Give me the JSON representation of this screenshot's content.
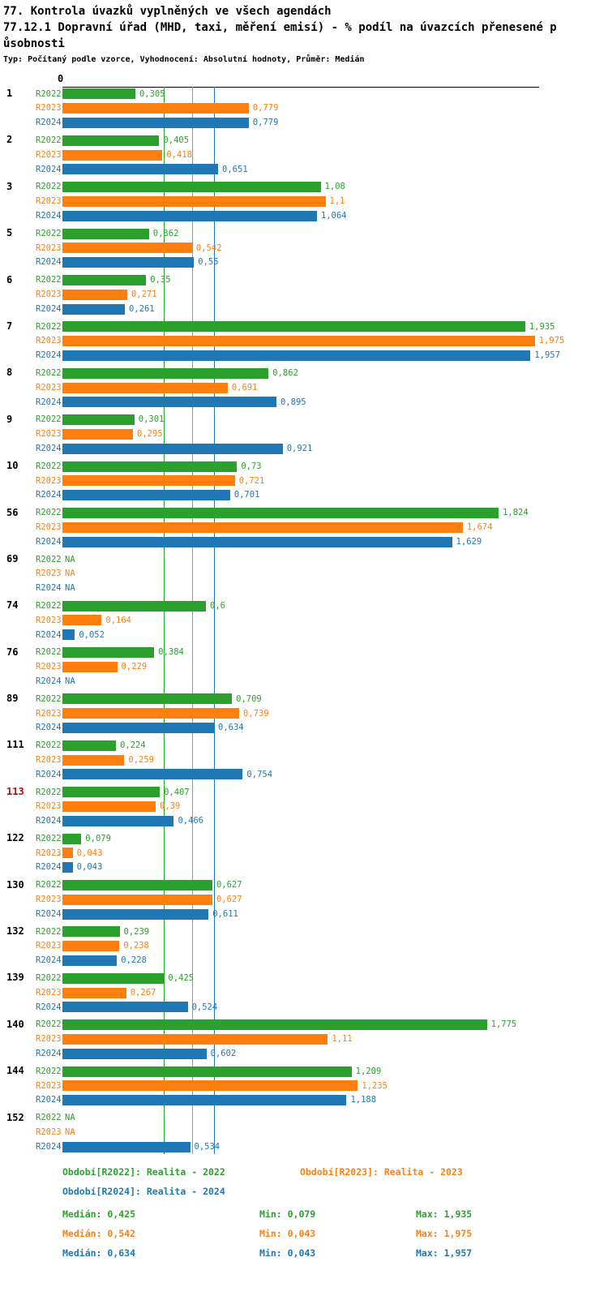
{
  "chart_data": {
    "type": "bar",
    "orientation": "horizontal",
    "title": "77. Kontrola úvazků vyplněných ve všech agendách",
    "subtitle_line1": "77.12.1 Dopravní úřad (MHD, taxi, měření emisí) - % podíl na úvazcích přenesené p",
    "subtitle_line2": "ůsobnosti",
    "meta": "Typ: Počítaný podle vzorce, Vyhodnocení: Absolutní hodnoty, Průměr: Medián",
    "x_axis": {
      "zero_label": "0",
      "range": [
        0,
        2
      ]
    },
    "series": [
      "R2022",
      "R2023",
      "R2024"
    ],
    "series_colors": {
      "R2022": "#2ca02c",
      "R2023": "#ff7f0e",
      "R2024": "#1f77b4"
    },
    "medians": {
      "R2022": 0.425,
      "R2023": 0.542,
      "R2024": 0.634
    },
    "highlight_color": "#d40000",
    "groups": [
      {
        "id": "1",
        "highlight": false,
        "values": [
          0.305,
          0.779,
          0.779
        ],
        "labels": [
          "0,305",
          "0,779",
          "0,779"
        ]
      },
      {
        "id": "2",
        "highlight": false,
        "values": [
          0.405,
          0.418,
          0.651
        ],
        "labels": [
          "0,405",
          "0,418",
          "0,651"
        ]
      },
      {
        "id": "3",
        "highlight": false,
        "values": [
          1.08,
          1.1,
          1.064
        ],
        "labels": [
          "1,08",
          "1,1",
          "1,064"
        ]
      },
      {
        "id": "5",
        "highlight": false,
        "values": [
          0.362,
          0.542,
          0.55
        ],
        "labels": [
          "0,362",
          "0,542",
          "0,55"
        ]
      },
      {
        "id": "6",
        "highlight": false,
        "values": [
          0.35,
          0.271,
          0.261
        ],
        "labels": [
          "0,35",
          "0,271",
          "0,261"
        ]
      },
      {
        "id": "7",
        "highlight": false,
        "values": [
          1.935,
          1.975,
          1.957
        ],
        "labels": [
          "1,935",
          "1,975",
          "1,957"
        ]
      },
      {
        "id": "8",
        "highlight": false,
        "values": [
          0.862,
          0.691,
          0.895
        ],
        "labels": [
          "0,862",
          "0,691",
          "0,895"
        ]
      },
      {
        "id": "9",
        "highlight": false,
        "values": [
          0.301,
          0.295,
          0.921
        ],
        "labels": [
          "0,301",
          "0,295",
          "0,921"
        ]
      },
      {
        "id": "10",
        "highlight": false,
        "values": [
          0.73,
          0.721,
          0.701
        ],
        "labels": [
          "0,73",
          "0,721",
          "0,701"
        ]
      },
      {
        "id": "56",
        "highlight": false,
        "values": [
          1.824,
          1.674,
          1.629
        ],
        "labels": [
          "1,824",
          "1,674",
          "1,629"
        ]
      },
      {
        "id": "69",
        "highlight": false,
        "values": [
          null,
          null,
          null
        ],
        "labels": [
          "NA",
          "NA",
          "NA"
        ]
      },
      {
        "id": "74",
        "highlight": false,
        "values": [
          0.6,
          0.164,
          0.052
        ],
        "labels": [
          "0,6",
          "0,164",
          "0,052"
        ]
      },
      {
        "id": "76",
        "highlight": false,
        "values": [
          0.384,
          0.229,
          null
        ],
        "labels": [
          "0,384",
          "0,229",
          "NA"
        ]
      },
      {
        "id": "89",
        "highlight": false,
        "values": [
          0.709,
          0.739,
          0.634
        ],
        "labels": [
          "0,709",
          "0,739",
          "0,634"
        ]
      },
      {
        "id": "111",
        "highlight": false,
        "values": [
          0.224,
          0.259,
          0.754
        ],
        "labels": [
          "0,224",
          "0,259",
          "0,754"
        ]
      },
      {
        "id": "113",
        "highlight": true,
        "values": [
          0.407,
          0.39,
          0.466
        ],
        "labels": [
          "0,407",
          "0,39",
          "0,466"
        ]
      },
      {
        "id": "122",
        "highlight": false,
        "values": [
          0.079,
          0.043,
          0.043
        ],
        "labels": [
          "0,079",
          "0,043",
          "0,043"
        ]
      },
      {
        "id": "130",
        "highlight": false,
        "values": [
          0.627,
          0.627,
          0.611
        ],
        "labels": [
          "0,627",
          "0,627",
          "0,611"
        ]
      },
      {
        "id": "132",
        "highlight": false,
        "values": [
          0.239,
          0.238,
          0.228
        ],
        "labels": [
          "0,239",
          "0,238",
          "0,228"
        ]
      },
      {
        "id": "139",
        "highlight": false,
        "values": [
          0.425,
          0.267,
          0.524
        ],
        "labels": [
          "0,425",
          "0,267",
          "0,524"
        ]
      },
      {
        "id": "140",
        "highlight": false,
        "values": [
          1.775,
          1.11,
          0.602
        ],
        "labels": [
          "1,775",
          "1,11",
          "0,602"
        ]
      },
      {
        "id": "144",
        "highlight": false,
        "values": [
          1.209,
          1.235,
          1.188
        ],
        "labels": [
          "1,209",
          "1,235",
          "1,188"
        ]
      },
      {
        "id": "152",
        "highlight": false,
        "values": [
          null,
          null,
          0.534
        ],
        "labels": [
          "NA",
          "NA",
          "0,534"
        ]
      }
    ],
    "legend": {
      "items": [
        {
          "series": "R2022",
          "label": "Období[R2022]: Realita - 2022"
        },
        {
          "series": "R2023",
          "label": "Období[R2023]: Realita - 2023"
        },
        {
          "series": "R2024",
          "label": "Období[R2024]: Realita - 2024"
        }
      ]
    },
    "stats": [
      {
        "series": "R2022",
        "median": "Medián: 0,425",
        "min": "Min: 0,079",
        "max": "Max: 1,935"
      },
      {
        "series": "R2023",
        "median": "Medián: 0,542",
        "min": "Min: 0,043",
        "max": "Max: 1,975"
      },
      {
        "series": "R2024",
        "median": "Medián: 0,634",
        "min": "Min: 0,043",
        "max": "Max: 1,957"
      }
    ]
  }
}
